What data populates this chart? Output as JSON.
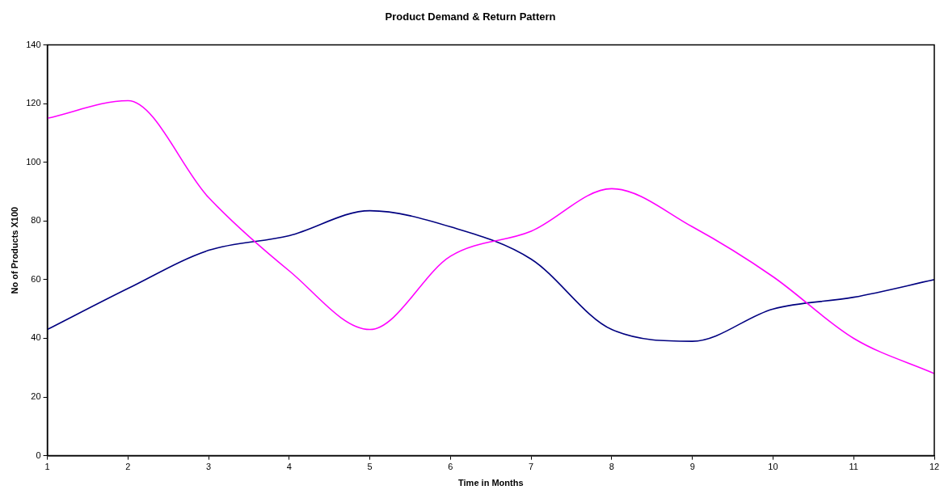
{
  "chart_data": {
    "type": "line",
    "title": "Product Demand & Return Pattern",
    "xlabel": "Time in Months",
    "ylabel": "No of Products X100",
    "x": [
      1,
      2,
      3,
      4,
      5,
      6,
      7,
      8,
      9,
      10,
      11,
      12
    ],
    "series": [
      {
        "color": "#ff00ff",
        "values": [
          115,
          121,
          88,
          63,
          43,
          68,
          76.5,
          91,
          78,
          61,
          40,
          28
        ]
      },
      {
        "color": "#000080",
        "values": [
          43,
          57,
          70,
          75,
          83.5,
          78,
          67,
          43,
          39,
          50,
          54,
          60
        ]
      }
    ],
    "xlim": [
      1,
      12
    ],
    "xticks": [
      1,
      2,
      3,
      4,
      5,
      6,
      7,
      8,
      9,
      10,
      11,
      12
    ],
    "ylim": [
      0,
      140
    ],
    "yticks": [
      0,
      20,
      40,
      60,
      80,
      100,
      120,
      140
    ],
    "grid": false,
    "legend": false,
    "marker": "none",
    "line_style": "solid"
  }
}
